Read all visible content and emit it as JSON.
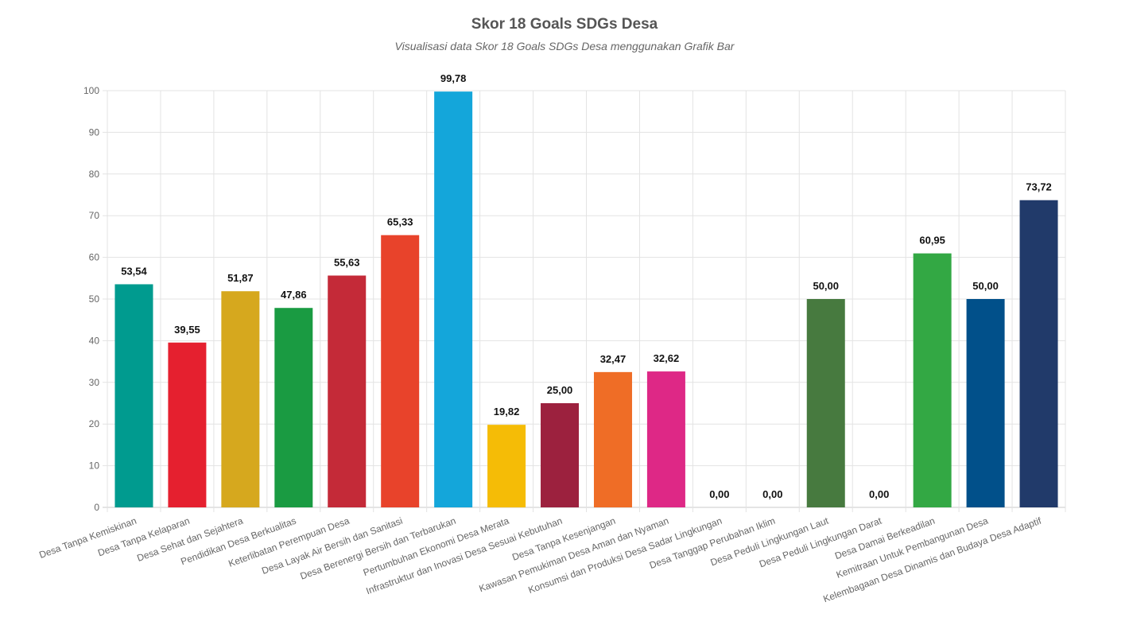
{
  "chart_data": {
    "type": "bar",
    "title": "Skor 18 Goals SDGs Desa",
    "subtitle": "Visualisasi data Skor 18 Goals SDGs Desa menggunakan Grafik Bar",
    "xlabel": "",
    "ylabel": "",
    "ylim": [
      0,
      100
    ],
    "yticks": [
      0,
      10,
      20,
      30,
      40,
      50,
      60,
      70,
      80,
      90,
      100
    ],
    "grid": true,
    "categories": [
      "Desa Tanpa Kemiskinan",
      "Desa Tanpa Kelaparan",
      "Desa Sehat dan Sejahtera",
      "Pendidikan Desa Berkualitas",
      "Keterlibatan Perempuan Desa",
      "Desa Layak Air Bersih dan Sanitasi",
      "Desa Berenergi Bersih dan Terbarukan",
      "Pertumbuhan Ekonomi Desa Merata",
      "Infrastruktur dan Inovasi Desa Sesuai Kebutuhan",
      "Desa Tanpa Kesenjangan",
      "Kawasan Pemukiman Desa Aman dan Nyaman",
      "Konsumsi dan Produksi Desa Sadar Lingkungan",
      "Desa Tanggap Perubahan Iklim",
      "Desa Peduli Lingkungan Laut",
      "Desa Peduli Lingkungan Darat",
      "Desa Damai Berkeadilan",
      "Kemitraan Untuk Pembangunan Desa",
      "Kelembagaan Desa Dinamis dan Budaya Desa Adaptif"
    ],
    "values": [
      53.54,
      39.55,
      51.87,
      47.86,
      55.63,
      65.33,
      99.78,
      19.82,
      25.0,
      32.47,
      32.62,
      0.0,
      0.0,
      50.0,
      0.0,
      60.95,
      50.0,
      73.72
    ],
    "value_labels": [
      "53,54",
      "39,55",
      "51,87",
      "47,86",
      "55,63",
      "65,33",
      "99,78",
      "19,82",
      "25,00",
      "32,47",
      "32,62",
      "0,00",
      "0,00",
      "50,00",
      "0,00",
      "60,95",
      "50,00",
      "73,72"
    ],
    "colors": [
      "#009B8F",
      "#E5202F",
      "#D6A81E",
      "#1A9B42",
      "#C42A38",
      "#E8432B",
      "#14A6DA",
      "#F5BC06",
      "#9C213E",
      "#EF6D26",
      "#DE2886",
      "#C9992D",
      "#48773E",
      "#477A3F",
      "#3BAF44",
      "#33A844",
      "#01508A",
      "#213A6A"
    ]
  }
}
